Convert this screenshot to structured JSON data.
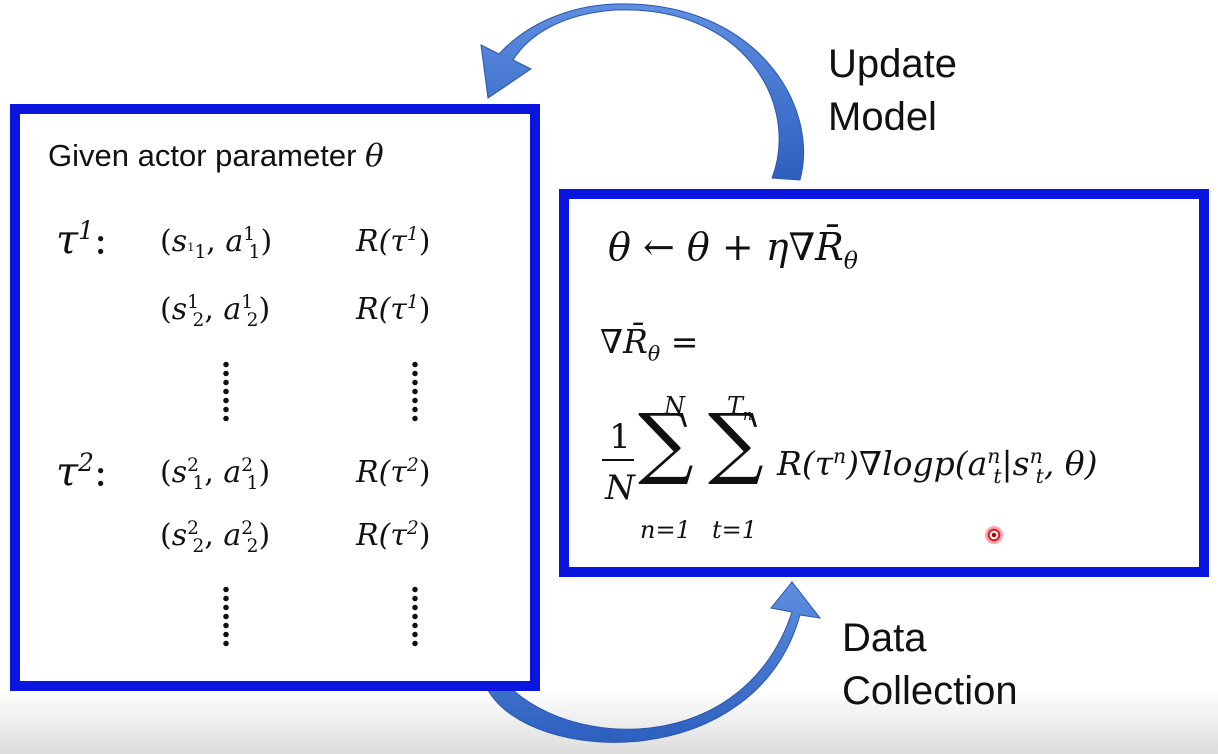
{
  "labels": {
    "update_model": "Update\nModel",
    "data_collection": "Data\nCollection"
  },
  "left_panel": {
    "heading_text": "Given actor parameter ",
    "heading_symbol": "θ",
    "trajectories": [
      {
        "tau": "τ",
        "tau_sup": "1",
        "steps": [
          {
            "s_sub": "1",
            "s_sup": "1",
            "a_sub": "1",
            "a_sup": "1",
            "reward": "R(τ",
            "reward_sup": "1"
          },
          {
            "s_sub": "2",
            "s_sup": "1",
            "a_sub": "2",
            "a_sup": "1",
            "reward": "R(τ",
            "reward_sup": "1"
          }
        ]
      },
      {
        "tau": "τ",
        "tau_sup": "2",
        "steps": [
          {
            "s_sub": "1",
            "s_sup": "2",
            "a_sub": "1",
            "a_sup": "2",
            "reward": "R(τ",
            "reward_sup": "2"
          },
          {
            "s_sub": "2",
            "s_sup": "2",
            "a_sub": "2",
            "a_sup": "2",
            "reward": "R(τ",
            "reward_sup": "2"
          }
        ]
      }
    ]
  },
  "right_panel": {
    "update_rule": {
      "lhs": "θ",
      "arrow": "←",
      "rhs": "θ + η∇",
      "rbar": "R̄",
      "sub": "θ"
    },
    "gradient_lhs": {
      "nabla": "∇",
      "rbar": "R̄",
      "sub": "θ",
      "eq": " ="
    },
    "gradient_rhs": {
      "numerator": "1",
      "denominator": "N",
      "sum1": {
        "symbol": "∑",
        "upper": "N",
        "lower": "n=1"
      },
      "sum2": {
        "symbol": "∑",
        "upper_base": "T",
        "upper_sub": "n",
        "lower": "t=1"
      },
      "term": {
        "r": "R(τ",
        "r_sup": "n",
        "mid": ")∇logp(a",
        "a_sub": "t",
        "a_sup": "n",
        "bar": "|s",
        "s_sub": "t",
        "s_sup": "n",
        "tail": ", θ)"
      }
    }
  },
  "colors": {
    "box_border": "#0a16e0",
    "arrow_fill": "#3f73d0"
  }
}
